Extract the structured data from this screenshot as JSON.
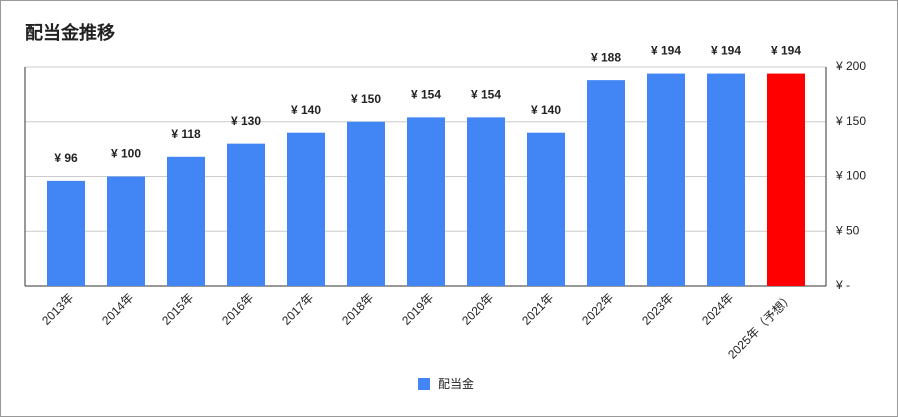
{
  "chart_data": {
    "type": "bar",
    "title": "配当金推移",
    "categories": [
      "2013年",
      "2014年",
      "2015年",
      "2016年",
      "2017年",
      "2018年",
      "2019年",
      "2020年",
      "2021年",
      "2022年",
      "2023年",
      "2024年",
      "2025年（予想）"
    ],
    "series": [
      {
        "name": "配当金",
        "color": "#4285f4",
        "colors": [
          "#4285f4",
          "#4285f4",
          "#4285f4",
          "#4285f4",
          "#4285f4",
          "#4285f4",
          "#4285f4",
          "#4285f4",
          "#4285f4",
          "#4285f4",
          "#4285f4",
          "#4285f4",
          "#ff0000"
        ],
        "values": [
          96,
          100,
          118,
          130,
          140,
          150,
          154,
          154,
          140,
          188,
          194,
          194,
          194
        ],
        "value_labels": [
          "¥ 96",
          "¥ 100",
          "¥ 118",
          "¥ 130",
          "¥ 140",
          "¥ 150",
          "¥ 154",
          "¥ 154",
          "¥ 140",
          "¥ 188",
          "¥ 194",
          "¥ 194",
          "¥ 194"
        ]
      }
    ],
    "ylim": [
      0,
      200
    ],
    "yticks": [
      {
        "value": 0,
        "label": "¥ -"
      },
      {
        "value": 50,
        "label": "¥ 50"
      },
      {
        "value": 100,
        "label": "¥ 100"
      },
      {
        "value": 150,
        "label": "¥ 150"
      },
      {
        "value": 200,
        "label": "¥ 200"
      }
    ],
    "y_axis_side": "right",
    "grid": true,
    "legend": "bottom"
  }
}
